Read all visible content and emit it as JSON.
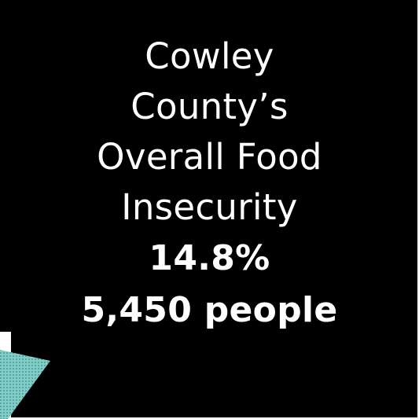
{
  "title_lines": [
    "Cowley",
    "County’s",
    "Overall Food",
    "Insecurity"
  ],
  "percent": "14.8%",
  "people": "5,450 people",
  "colors": {
    "card": "#000000",
    "text": "#ffffff",
    "accent_triangle": "#7fcfc8"
  }
}
